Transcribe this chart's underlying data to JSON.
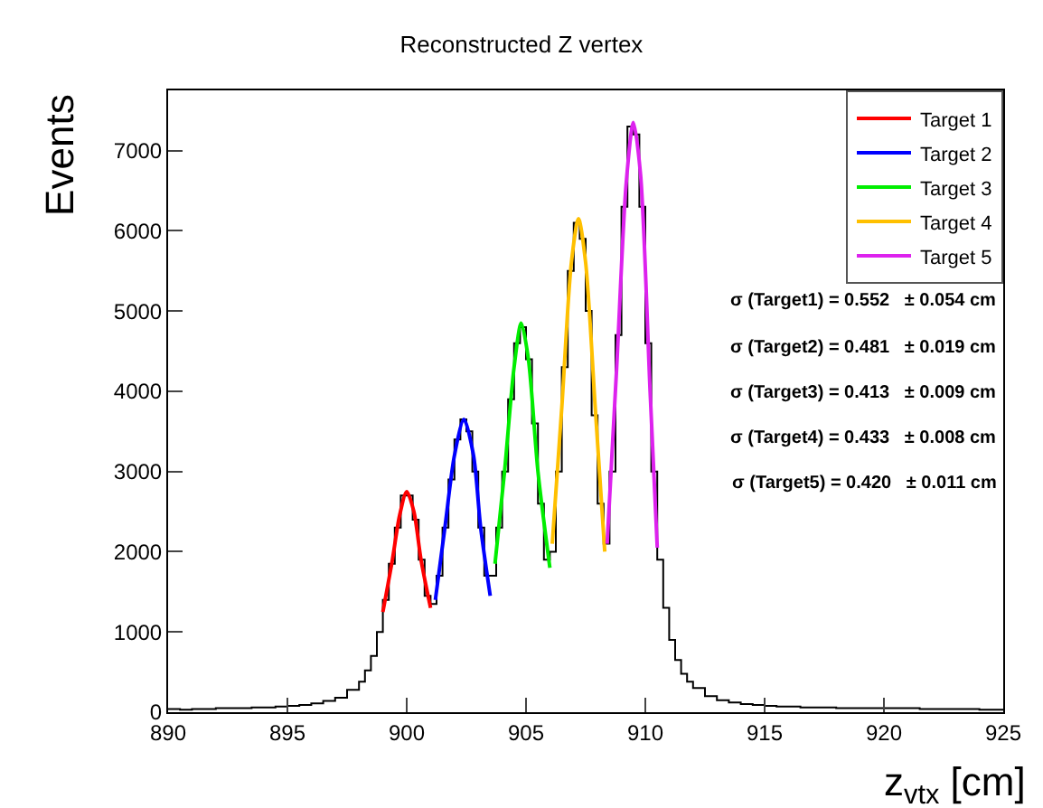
{
  "chart_data": {
    "type": "histogram",
    "title": "Reconstructed Z vertex",
    "xlabel": "z$_{vtx}$ [cm]",
    "ylabel": "Events",
    "bins": [
      890,
      890.5,
      891,
      891.5,
      892,
      892.5,
      893,
      893.5,
      894,
      894.5,
      895,
      895.5,
      896,
      896.5,
      897,
      897.5,
      898,
      898.25,
      898.5,
      898.75,
      899,
      899.25,
      899.5,
      899.75,
      900,
      900.25,
      900.5,
      900.75,
      901,
      901.25,
      901.5,
      901.75,
      902,
      902.25,
      902.5,
      902.75,
      903,
      903.25,
      903.5,
      903.75,
      904,
      904.25,
      904.5,
      904.75,
      905,
      905.25,
      905.5,
      905.75,
      906,
      906.25,
      906.5,
      906.75,
      907,
      907.25,
      907.5,
      907.75,
      908,
      908.25,
      908.5,
      908.75,
      909,
      909.25,
      909.5,
      909.75,
      910,
      910.25,
      910.5,
      910.75,
      911,
      911.25,
      911.5,
      911.75,
      912,
      912.5,
      913,
      913.5,
      914,
      914.5,
      915,
      915.5,
      916,
      916.5,
      917,
      917.5,
      918,
      918.5,
      919,
      919.5,
      920,
      920.5,
      921,
      921.5,
      922,
      922.5,
      923,
      923.5,
      924,
      924.5,
      925
    ],
    "values": [
      40,
      30,
      40,
      40,
      50,
      50,
      50,
      60,
      60,
      70,
      80,
      90,
      110,
      140,
      180,
      280,
      380,
      520,
      700,
      1000,
      1400,
      1850,
      2300,
      2700,
      2700,
      2400,
      1900,
      1450,
      1350,
      1700,
      2300,
      2900,
      3400,
      3650,
      3500,
      3000,
      2300,
      1700,
      1700,
      2300,
      3000,
      3900,
      4600,
      4800,
      4400,
      3600,
      2600,
      1900,
      2000,
      3000,
      4300,
      5500,
      6100,
      5900,
      5000,
      3700,
      2600,
      2100,
      3000,
      4700,
      6300,
      7300,
      7200,
      6300,
      4600,
      3000,
      1900,
      1300,
      900,
      650,
      480,
      380,
      300,
      200,
      150,
      120,
      100,
      90,
      80,
      70,
      70,
      60,
      60,
      60,
      50,
      50,
      50,
      50,
      50,
      50,
      50,
      40,
      40,
      40,
      40,
      40,
      30,
      30
    ],
    "color": "#000000",
    "series": [
      {
        "type": "line",
        "name": "Target 1",
        "color": "#ff0000",
        "x": [
          899.0,
          899.4,
          899.7,
          900.0,
          900.3,
          900.6,
          901.0
        ],
        "values": [
          1250,
          1900,
          2450,
          2750,
          2500,
          1900,
          1300
        ]
      },
      {
        "type": "line",
        "name": "Target 2",
        "color": "#0000ff",
        "x": [
          901.2,
          901.6,
          902.0,
          902.4,
          902.8,
          903.1,
          903.5
        ],
        "values": [
          1400,
          2300,
          3200,
          3650,
          3200,
          2300,
          1450
        ]
      },
      {
        "type": "line",
        "name": "Target 3",
        "color": "#00ee00",
        "x": [
          903.7,
          904.1,
          904.5,
          904.8,
          905.1,
          905.5,
          906.0
        ],
        "values": [
          1850,
          3000,
          4300,
          4850,
          4400,
          3000,
          1800
        ]
      },
      {
        "type": "line",
        "name": "Target 4",
        "color": "#ffc000",
        "x": [
          906.1,
          906.5,
          906.9,
          907.2,
          907.5,
          907.9,
          908.3
        ],
        "values": [
          2100,
          3800,
          5600,
          6150,
          5600,
          3800,
          2000
        ]
      },
      {
        "type": "line",
        "name": "Target 5",
        "color": "#dd22ee",
        "x": [
          908.4,
          908.8,
          909.2,
          909.5,
          909.8,
          910.2,
          910.5
        ],
        "values": [
          2100,
          4300,
          6600,
          7350,
          6700,
          4000,
          2050
        ]
      }
    ],
    "annotations": [
      "σ (Target1) = 0.552   ± 0.054 cm",
      "σ (Target2) = 0.481   ± 0.019 cm",
      "σ (Target3) = 0.413   ± 0.009 cm",
      "σ (Target4) = 0.433   ± 0.008 cm",
      "σ (Target5) = 0.420   ± 0.011 cm"
    ],
    "xlim": [
      890,
      925
    ],
    "xticks": [
      890,
      895,
      900,
      905,
      910,
      915,
      920,
      925
    ],
    "ylim": [
      0,
      7750
    ],
    "yticks": [
      0,
      1000,
      2000,
      3000,
      4000,
      5000,
      6000,
      7000
    ],
    "legend": "top right"
  }
}
